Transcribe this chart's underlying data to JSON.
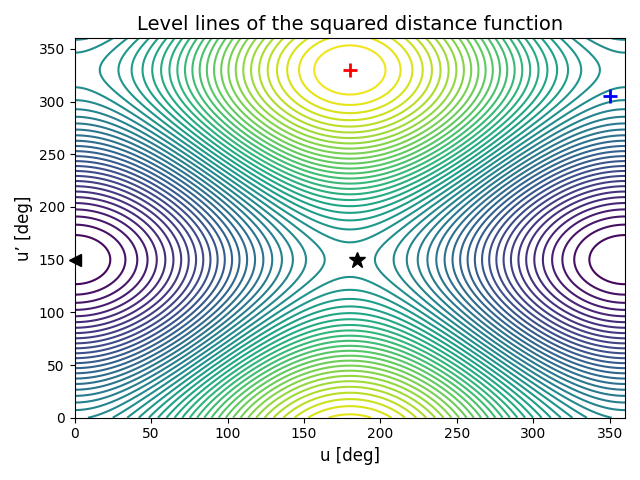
{
  "title": "Level lines of the squared distance function",
  "xlabel": "u [deg]",
  "ylabel": "u’ [deg]",
  "xlim": [
    0,
    360
  ],
  "ylim": [
    0,
    360
  ],
  "xticks": [
    0,
    50,
    100,
    150,
    200,
    250,
    300,
    350
  ],
  "yticks": [
    0,
    50,
    100,
    150,
    200,
    250,
    300,
    350
  ],
  "red_plus": [
    180,
    330
  ],
  "blue_plus": [
    350,
    305
  ],
  "black_star": [
    185,
    150
  ],
  "black_triangle": [
    0,
    150
  ],
  "n_levels": 50,
  "cmap": "viridis",
  "u_ref": 0,
  "uprime_ref": 150,
  "figsize": [
    6.4,
    4.8
  ],
  "dpi": 100
}
